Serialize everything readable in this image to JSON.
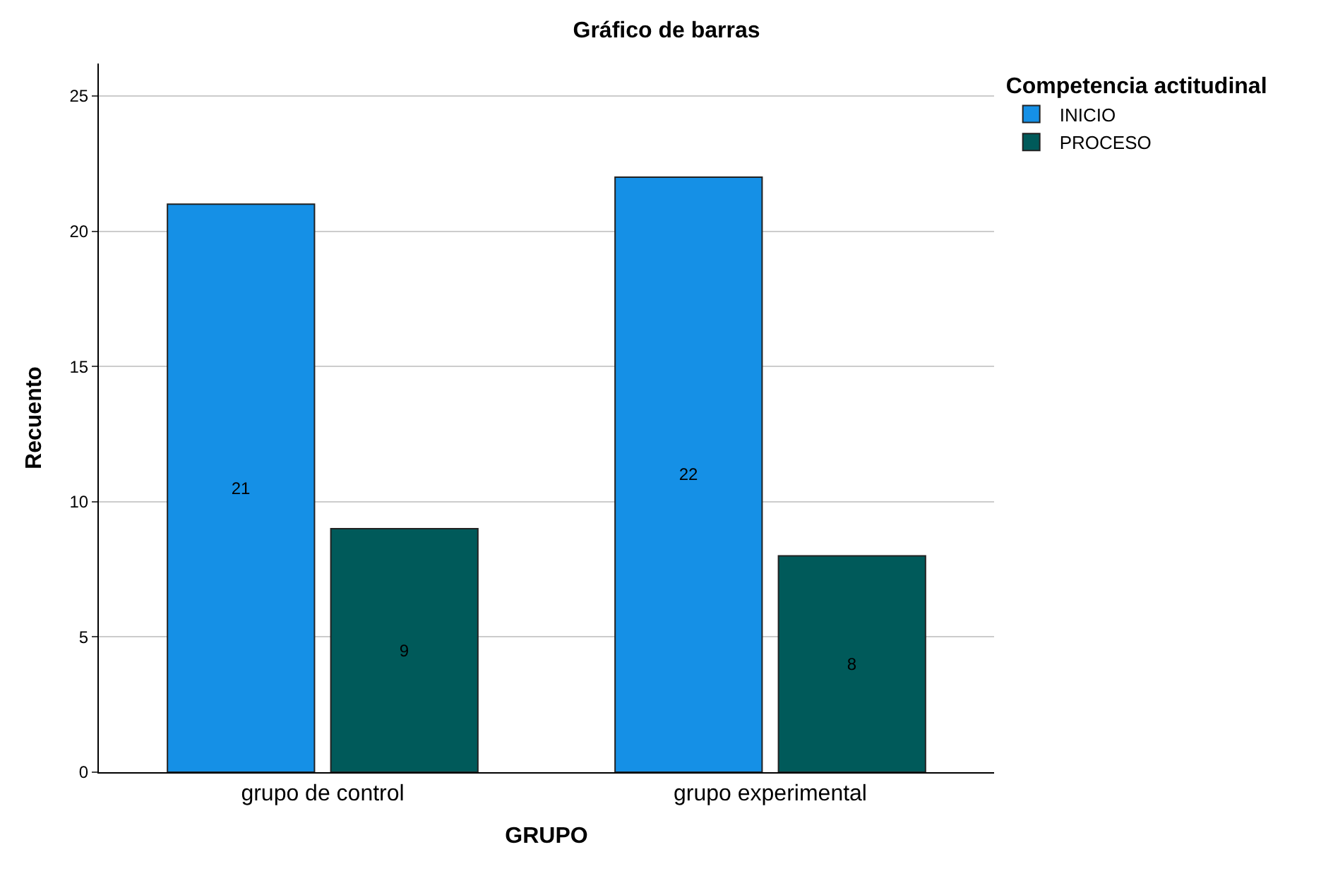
{
  "chart_data": {
    "type": "bar",
    "title": "Gráfico de barras",
    "xlabel": "GRUPO",
    "ylabel": "Recuento",
    "legend_title": "Competencia actitudinal",
    "categories": [
      "grupo de control",
      "grupo experimental"
    ],
    "series": [
      {
        "name": "INICIO",
        "color": "#1590e6",
        "values": [
          21,
          22
        ]
      },
      {
        "name": "PROCESO",
        "color": "#005a5a",
        "values": [
          9,
          8
        ]
      }
    ],
    "ylim": [
      0,
      26.2
    ],
    "yticks": [
      0,
      5,
      10,
      15,
      20,
      25
    ],
    "grid": "y",
    "legend": "top right",
    "data_labels": true
  }
}
